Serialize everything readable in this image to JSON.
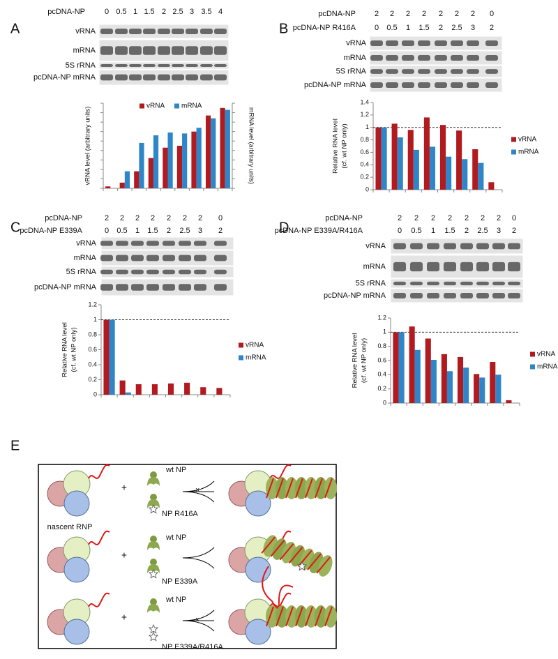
{
  "panels": [
    {
      "label": "A",
      "lane_rows": [
        {
          "name": "pcDNA-NP",
          "lanes": [
            0,
            0.5,
            1,
            1.5,
            2,
            2.5,
            3,
            3.5,
            4
          ]
        }
      ],
      "blots": [
        "vRNA",
        "mRNA",
        "5S rRNA",
        "pcDNA-NP mRNA"
      ]
    },
    {
      "label": "B",
      "lane_rows": [
        {
          "name": "pcDNA-NP",
          "lanes": [
            2,
            2,
            2,
            2,
            2,
            2,
            2,
            0
          ]
        },
        {
          "name": "pcDNA-NP R416A",
          "lanes": [
            0,
            0.5,
            1,
            1.5,
            2,
            2.5,
            3,
            2
          ]
        }
      ],
      "blots": [
        "vRNA",
        "mRNA",
        "5S rRNA",
        "pcDNA-NP mRNA"
      ]
    },
    {
      "label": "C",
      "lane_rows": [
        {
          "name": "pcDNA-NP",
          "lanes": [
            2,
            2,
            2,
            2,
            2,
            2,
            2,
            0
          ]
        },
        {
          "name": "pcDNA-NP E339A",
          "lanes": [
            0,
            0.5,
            1,
            1.5,
            2,
            2.5,
            3,
            2
          ]
        }
      ],
      "blots": [
        "vRNA",
        "mRNA",
        "5S rRNA",
        "pcDNA-NP mRNA"
      ]
    },
    {
      "label": "D",
      "lane_rows": [
        {
          "name": "pcDNA-NP",
          "lanes": [
            2,
            2,
            2,
            2,
            2,
            2,
            2,
            0
          ]
        },
        {
          "name": "pcDNA-NP E339A/R416A",
          "lanes": [
            0,
            0.5,
            1,
            1.5,
            2,
            2.5,
            3,
            2
          ]
        }
      ],
      "blots": [
        "vRNA",
        "mRNA",
        "5S rRNA",
        "pcDNA-NP mRNA"
      ]
    }
  ],
  "chart_data": [
    {
      "type": "bar",
      "categories": [
        null,
        null,
        null,
        null,
        null,
        null,
        null,
        null,
        null
      ],
      "series": [
        {
          "name": "vRNA",
          "color": "#b11a1f",
          "values": [
            0.2,
            0.6,
            1.8,
            3.2,
            4.3,
            4.5,
            6.0,
            7.7,
            8.5
          ]
        },
        {
          "name": "mRNA",
          "color": "#2e86c8",
          "axis": "y2",
          "values": [
            0,
            1.8,
            4.8,
            5.6,
            5.9,
            5.8,
            6.4,
            7.4,
            8.3
          ]
        }
      ],
      "ylim": [
        0,
        9
      ],
      "yticks": [
        0,
        1,
        2,
        3,
        4,
        5,
        6,
        7,
        8,
        9
      ],
      "y2lim": [
        0,
        9
      ],
      "y2ticks": [
        0,
        1,
        2,
        3,
        4,
        5,
        6,
        7,
        8,
        9
      ],
      "tick_labels": false,
      "ylabel": [
        "vRNA level (arbitrary units)"
      ],
      "y2label": "mRNA level (arbitrary units)",
      "legend": "top"
    },
    {
      "type": "bar",
      "categories": [
        null,
        null,
        null,
        null,
        null,
        null,
        null,
        null
      ],
      "series": [
        {
          "name": "vRNA",
          "color": "#b11a1f",
          "values": [
            1.0,
            1.06,
            0.96,
            1.16,
            1.04,
            0.95,
            0.65,
            0.12
          ]
        },
        {
          "name": "mRNA",
          "color": "#2e86c8",
          "values": [
            1.0,
            0.84,
            0.64,
            0.69,
            0.53,
            0.49,
            0.43,
            0
          ]
        }
      ],
      "ylim": [
        0,
        1.4
      ],
      "yticks": [
        0,
        0.2,
        0.4,
        0.6,
        0.8,
        1,
        1.2,
        1.4
      ],
      "tick_labels": true,
      "hline": 1,
      "ylabel": [
        "Relative RNA level",
        "(cf. wt NP only)"
      ],
      "legend": "right"
    },
    {
      "type": "bar",
      "categories": [
        null,
        null,
        null,
        null,
        null,
        null,
        null,
        null
      ],
      "series": [
        {
          "name": "vRNA",
          "color": "#b11a1f",
          "values": [
            1.0,
            0.19,
            0.14,
            0.14,
            0.15,
            0.16,
            0.1,
            0.09
          ]
        },
        {
          "name": "mRNA",
          "color": "#2e86c8",
          "values": [
            1.0,
            0.03,
            0,
            0,
            0,
            0,
            0,
            0
          ]
        }
      ],
      "ylim": [
        0,
        1.2
      ],
      "yticks": [
        0,
        0.2,
        0.4,
        0.6,
        0.8,
        1,
        1.2
      ],
      "tick_labels": true,
      "hline": 1,
      "ylabel": [
        "Relative RNA level",
        "(cf. wt NP only)"
      ],
      "legend": "right"
    },
    {
      "type": "bar",
      "categories": [
        null,
        null,
        null,
        null,
        null,
        null,
        null,
        null
      ],
      "series": [
        {
          "name": "vRNA",
          "color": "#b11a1f",
          "values": [
            1.0,
            1.08,
            0.91,
            0.69,
            0.65,
            0.41,
            0.58,
            0.04
          ]
        },
        {
          "name": "mRNA",
          "color": "#2e86c8",
          "values": [
            1.0,
            0.75,
            0.61,
            0.45,
            0.5,
            0.36,
            0.4,
            0
          ]
        }
      ],
      "ylim": [
        0,
        1.2
      ],
      "yticks": [
        0,
        0.2,
        0.4,
        0.6,
        0.8,
        1,
        1.2
      ],
      "tick_labels": true,
      "hline": 1,
      "ylabel": [
        "Relative RNA level",
        "(cf. wt NP only)"
      ],
      "legend": "right"
    }
  ],
  "panel_e": {
    "label": "E",
    "rows": [
      {
        "plus": "+",
        "wt": "wt NP",
        "mutant": "NP R416A",
        "rnp": "nascent RNP"
      },
      {
        "plus": "+",
        "wt": "wt NP",
        "mutant": "NP E339A"
      },
      {
        "plus": "+",
        "wt": "wt NP",
        "mutant": "NP E339A/R416A"
      }
    ]
  }
}
